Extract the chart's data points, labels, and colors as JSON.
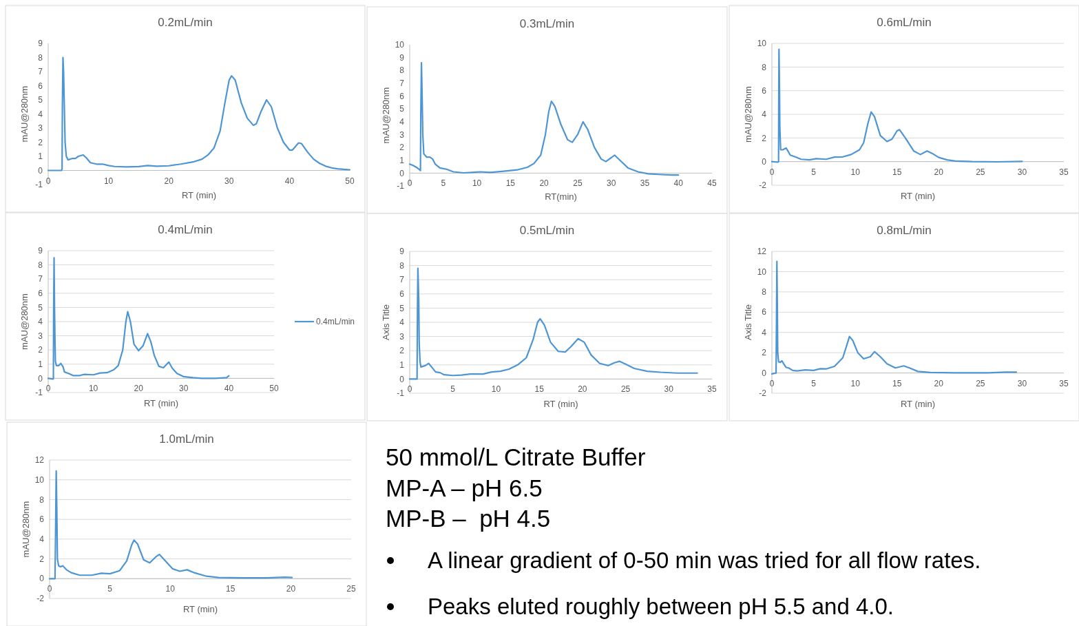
{
  "chart_data": [
    {
      "type": "line",
      "title": "0.2mL/min",
      "xlabel": "RT (min)",
      "ylabel": "mAU@280nm",
      "xlim": [
        0,
        50
      ],
      "xticks": [
        0,
        10,
        20,
        30,
        40,
        50
      ],
      "ylim": [
        -1,
        9
      ],
      "yticks": [
        -1,
        0,
        1,
        2,
        3,
        4,
        5,
        6,
        7,
        8,
        9
      ],
      "grid": false,
      "legend": false,
      "series": [
        {
          "color": "#4e95d4",
          "x": [
            0,
            2.2,
            2.3,
            2.35,
            2.45,
            2.55,
            2.65,
            2.8,
            3.0,
            3.3,
            4.0,
            4.5,
            5,
            5.8,
            6.3,
            7,
            8,
            9,
            10,
            11,
            13,
            15,
            16.5,
            18,
            20,
            22,
            24,
            25.5,
            26.5,
            27.5,
            28.5,
            29.3,
            30,
            30.4,
            31,
            32,
            33,
            34,
            34.5,
            35.3,
            36.2,
            37,
            38,
            39,
            40,
            40.5,
            41.5,
            42,
            43,
            44,
            45,
            46,
            47,
            48,
            49,
            50
          ],
          "values": [
            0.0,
            0.0,
            0.1,
            4.5,
            8.0,
            7.0,
            5.0,
            2.0,
            1.0,
            0.75,
            0.85,
            0.85,
            1.0,
            1.1,
            0.9,
            0.55,
            0.45,
            0.45,
            0.35,
            0.28,
            0.25,
            0.27,
            0.35,
            0.3,
            0.33,
            0.45,
            0.6,
            0.8,
            1.1,
            1.6,
            2.8,
            4.8,
            6.4,
            6.7,
            6.4,
            4.8,
            3.7,
            3.2,
            3.3,
            4.2,
            5.0,
            4.5,
            3.0,
            2.0,
            1.45,
            1.45,
            1.95,
            1.9,
            1.3,
            0.8,
            0.5,
            0.3,
            0.18,
            0.12,
            0.08,
            0.05
          ]
        }
      ]
    },
    {
      "type": "line",
      "title": "0.3mL/min",
      "xlabel": "RT(min)",
      "ylabel": "mAU@280nm",
      "xlim": [
        0,
        45
      ],
      "xticks": [
        0,
        5,
        10,
        15,
        20,
        25,
        30,
        35,
        40,
        45
      ],
      "ylim": [
        -1,
        10
      ],
      "yticks": [
        -1,
        0,
        1,
        2,
        3,
        4,
        5,
        6,
        7,
        8,
        9,
        10
      ],
      "grid": false,
      "legend": false,
      "series": [
        {
          "color": "#4e95d4",
          "x": [
            0,
            0.5,
            1,
            1.5,
            1.6,
            1.65,
            1.75,
            1.85,
            1.95,
            2.1,
            2.5,
            3,
            3.4,
            3.8,
            4.5,
            5.5,
            6.5,
            8,
            10,
            10.5,
            12,
            14,
            16,
            17.5,
            18.5,
            19.5,
            20.2,
            20.7,
            21.1,
            21.6,
            22.5,
            23.5,
            24.2,
            25,
            25.8,
            26.5,
            27.5,
            28.5,
            29.2,
            30,
            30.5,
            31.3,
            32.5,
            34,
            35.5,
            37,
            39,
            40
          ],
          "values": [
            0.7,
            0.6,
            0.45,
            0.25,
            0.2,
            4.5,
            8.6,
            6.0,
            3.0,
            1.5,
            1.25,
            1.25,
            1.1,
            0.7,
            0.4,
            0.3,
            0.1,
            0.02,
            0.08,
            0.1,
            0.05,
            0.15,
            0.25,
            0.45,
            0.75,
            1.4,
            3.0,
            4.8,
            5.6,
            5.2,
            3.8,
            2.6,
            2.4,
            3.0,
            4.0,
            3.4,
            2.0,
            1.1,
            0.9,
            1.2,
            1.4,
            1.0,
            0.4,
            0.1,
            -0.05,
            -0.1,
            -0.15,
            -0.15
          ]
        }
      ]
    },
    {
      "type": "line",
      "title": "0.6mL/min",
      "xlabel": "RT (min)",
      "ylabel": "mAU@280nm",
      "xlim": [
        0,
        35
      ],
      "xticks": [
        0,
        5,
        10,
        15,
        20,
        25,
        30,
        35
      ],
      "ylim": [
        -2,
        10
      ],
      "yticks": [
        -2,
        0,
        2,
        4,
        6,
        8,
        10
      ],
      "grid": "y",
      "legend": false,
      "series": [
        {
          "color": "#4e95d4",
          "x": [
            0,
            0.7,
            0.8,
            0.82,
            0.85,
            0.9,
            0.95,
            1.05,
            1.3,
            1.7,
            2,
            2.2,
            2.8,
            3.5,
            4.5,
            5.3,
            6.5,
            7.5,
            8.5,
            9.5,
            10.5,
            11,
            11.5,
            11.9,
            12.3,
            13,
            13.8,
            14.4,
            15,
            15.3,
            16,
            17,
            17.8,
            18.6,
            19.2,
            20,
            21,
            22,
            24,
            27,
            30
          ],
          "values": [
            0,
            -0.05,
            0,
            5,
            9.5,
            7,
            3,
            1.0,
            1.0,
            1.15,
            0.8,
            0.55,
            0.4,
            0.2,
            0.15,
            0.25,
            0.2,
            0.38,
            0.4,
            0.6,
            1.0,
            1.6,
            3.2,
            4.2,
            3.8,
            2.2,
            1.7,
            1.9,
            2.6,
            2.7,
            2.0,
            0.9,
            0.6,
            0.9,
            0.7,
            0.35,
            0.15,
            0.05,
            0,
            -0.02,
            0.02
          ]
        }
      ]
    },
    {
      "type": "line",
      "title": "0.4mL/min",
      "xlabel": "RT (min)",
      "ylabel": "mAU@280nm",
      "xlim": [
        0,
        50
      ],
      "xticks": [
        0,
        10,
        20,
        30,
        40,
        50
      ],
      "ylim": [
        -1,
        9
      ],
      "yticks": [
        -1,
        0,
        1,
        2,
        3,
        4,
        5,
        6,
        7,
        8,
        9
      ],
      "grid": "y",
      "legend": "right",
      "series": [
        {
          "name": "0.4mL/min",
          "color": "#4e95d4",
          "x": [
            0,
            1.1,
            1.15,
            1.2,
            1.3,
            1.4,
            1.5,
            1.6,
            1.8,
            2.3,
            2.8,
            3.3,
            3.6,
            4.5,
            5.5,
            7,
            8,
            10,
            11.5,
            13,
            14.5,
            15.5,
            16.5,
            17.2,
            17.6,
            18.2,
            19,
            20,
            21,
            22,
            22.7,
            23.5,
            24.5,
            25.5,
            26.7,
            27.5,
            28.5,
            30,
            32,
            34,
            37,
            39.5,
            40
          ],
          "values": [
            0,
            -0.05,
            0,
            4.5,
            8.5,
            5,
            2.7,
            1.2,
            0.9,
            0.9,
            1.05,
            0.8,
            0.45,
            0.35,
            0.2,
            0.2,
            0.28,
            0.25,
            0.38,
            0.4,
            0.6,
            0.9,
            2.0,
            4.0,
            4.7,
            4.0,
            2.4,
            1.95,
            2.3,
            3.15,
            2.6,
            1.6,
            0.85,
            0.75,
            1.15,
            0.7,
            0.35,
            0.12,
            0.05,
            0.0,
            0.0,
            0.05,
            0.18
          ]
        }
      ]
    },
    {
      "type": "line",
      "title": "0.5mL/min",
      "xlabel": "RT (min)",
      "ylabel": "Axis Title",
      "xlim": [
        0,
        35
      ],
      "xticks": [
        0,
        5,
        10,
        15,
        20,
        25,
        30,
        35
      ],
      "ylim": [
        -1,
        9
      ],
      "yticks": [
        -1,
        0,
        1,
        2,
        3,
        4,
        5,
        6,
        7,
        8,
        9
      ],
      "grid": "y",
      "legend": false,
      "series": [
        {
          "color": "#4e95d4",
          "x": [
            0,
            0.85,
            0.9,
            0.95,
            1.05,
            1.1,
            1.2,
            1.3,
            1.8,
            2.2,
            2.6,
            3,
            3.5,
            4,
            5,
            6,
            7,
            8.5,
            9.5,
            10.5,
            11.5,
            12.5,
            13.5,
            14.3,
            14.8,
            15.1,
            15.6,
            16.3,
            17.2,
            18,
            18.7,
            19.5,
            20.2,
            21,
            22,
            23,
            23.7,
            24.3,
            25,
            26,
            27.5,
            29,
            31,
            33.3
          ],
          "values": [
            0,
            0,
            5,
            7.8,
            5.5,
            2.5,
            1.2,
            0.85,
            0.95,
            1.1,
            0.8,
            0.5,
            0.45,
            0.3,
            0.25,
            0.28,
            0.35,
            0.35,
            0.5,
            0.55,
            0.7,
            1.0,
            1.5,
            2.8,
            4.0,
            4.25,
            3.8,
            2.6,
            1.95,
            1.9,
            2.3,
            2.85,
            2.6,
            1.7,
            1.1,
            0.95,
            1.15,
            1.25,
            1.05,
            0.75,
            0.55,
            0.48,
            0.42,
            0.42
          ]
        }
      ]
    },
    {
      "type": "line",
      "title": "0.8mL/min",
      "xlabel": "RT (min)",
      "ylabel": "Axis Title",
      "xlim": [
        0,
        35
      ],
      "xticks": [
        0,
        5,
        10,
        15,
        20,
        25,
        30,
        35
      ],
      "ylim": [
        -2,
        12
      ],
      "yticks": [
        -2,
        0,
        2,
        4,
        6,
        8,
        10,
        12
      ],
      "grid": "y",
      "legend": false,
      "series": [
        {
          "color": "#4e95d4",
          "x": [
            0,
            0.5,
            0.55,
            0.6,
            0.65,
            0.7,
            0.8,
            1.0,
            1.2,
            1.5,
            1.7,
            2,
            2.5,
            3,
            4,
            5,
            5.8,
            6.5,
            7.5,
            8.5,
            9,
            9.3,
            9.7,
            10.3,
            11,
            11.8,
            12.3,
            13,
            13.8,
            14.8,
            15.8,
            16.5,
            17.5,
            19,
            22,
            26,
            28,
            29.3
          ],
          "values": [
            -0.1,
            0,
            5,
            11,
            7,
            2,
            1.1,
            1.05,
            1.2,
            0.8,
            0.55,
            0.5,
            0.25,
            0.2,
            0.3,
            0.25,
            0.42,
            0.4,
            0.65,
            1.5,
            2.8,
            3.6,
            3.2,
            2.0,
            1.4,
            1.6,
            2.1,
            1.6,
            0.9,
            0.5,
            0.7,
            0.5,
            0.15,
            0.05,
            0.02,
            0.02,
            0.08,
            0.08
          ]
        }
      ]
    },
    {
      "type": "line",
      "title": "1.0mL/min",
      "xlabel": "RT (min)",
      "ylabel": "mAU@280nm",
      "xlim": [
        0,
        25
      ],
      "xticks": [
        0,
        5,
        10,
        15,
        20,
        25
      ],
      "ylim": [
        -2,
        12
      ],
      "yticks": [
        -2,
        0,
        2,
        4,
        6,
        8,
        10,
        12
      ],
      "grid": "y",
      "legend": false,
      "series": [
        {
          "color": "#4e95d4",
          "x": [
            0,
            0.45,
            0.5,
            0.55,
            0.6,
            0.65,
            0.75,
            0.9,
            1.1,
            1.4,
            1.8,
            2.5,
            3.5,
            4.3,
            5,
            5.8,
            6.4,
            6.8,
            7.0,
            7.3,
            7.8,
            8.3,
            8.8,
            9.1,
            9.6,
            10.2,
            10.8,
            11.4,
            12,
            13,
            14,
            16,
            18,
            19.5,
            20.1
          ],
          "values": [
            0,
            0,
            5,
            10.9,
            7,
            2,
            1.3,
            1.2,
            1.3,
            0.9,
            0.6,
            0.35,
            0.35,
            0.55,
            0.5,
            0.8,
            1.8,
            3.4,
            3.9,
            3.5,
            1.9,
            1.6,
            2.2,
            2.45,
            1.8,
            1.0,
            0.75,
            0.9,
            0.6,
            0.25,
            0.12,
            0.08,
            0.08,
            0.15,
            0.12
          ]
        }
      ]
    },
    {
      "type": "other",
      "annotations": [
        "50 mmol/L Citrate Buffer",
        "MP-A – pH 6.5",
        "MP-B –  pH 4.5",
        "A linear gradient of 0-50 min was tried for all flow rates.",
        "Peaks eluted roughly between pH 5.5 and 4.0."
      ]
    }
  ]
}
